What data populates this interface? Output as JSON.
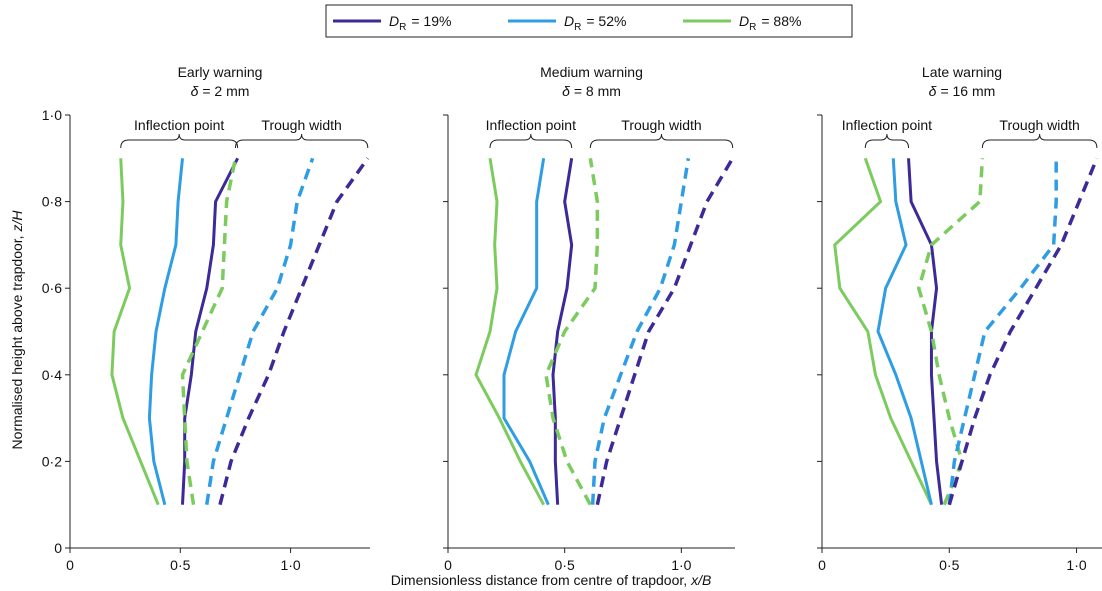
{
  "legend": [
    {
      "symbol": "D",
      "subscript": "R",
      "label": "= 19%",
      "color": "#3b2a98"
    },
    {
      "symbol": "D",
      "subscript": "R",
      "label": "= 52%",
      "color": "#2f9de4"
    },
    {
      "symbol": "D",
      "subscript": "R",
      "label": "= 88%",
      "color": "#7ccb5e"
    }
  ],
  "x_label": {
    "text": "Dimensionless distance from centre of trapdoor,",
    "var": "x/B"
  },
  "y_label": {
    "text": "Normalised height above trapdoor,",
    "var": "z/H"
  },
  "chart_data": [
    {
      "type": "line",
      "title": "Early warning",
      "subtitle": {
        "symbol": "δ",
        "text": "= 2 mm"
      },
      "annotations": [
        "Inflection point",
        "Trough width"
      ],
      "xlim": [
        0,
        1.36
      ],
      "xticks": [
        0,
        {
          "value": 0.5,
          "label": "0·5"
        },
        {
          "value": 1,
          "label": "1·0"
        }
      ],
      "ylim": [
        0,
        1
      ],
      "yticks": [
        0,
        {
          "value": 0.2,
          "label": "0·2"
        },
        {
          "value": 0.4,
          "label": "0·4"
        },
        {
          "value": 0.6,
          "label": "0·6"
        },
        {
          "value": 0.8,
          "label": "0·8"
        },
        {
          "value": 1,
          "label": "1·0"
        }
      ],
      "y": [
        0.1,
        0.2,
        0.3,
        0.4,
        0.5,
        0.6,
        0.7,
        0.8,
        0.9
      ],
      "series": [
        {
          "color": "#7ccb5e",
          "style": "solid",
          "x": [
            0.4,
            0.32,
            0.24,
            0.19,
            0.2,
            0.27,
            0.23,
            0.24,
            0.23
          ]
        },
        {
          "color": "#2f9de4",
          "style": "solid",
          "x": [
            0.43,
            0.38,
            0.36,
            0.37,
            0.39,
            0.43,
            0.48,
            0.49,
            0.51
          ]
        },
        {
          "color": "#3b2a98",
          "style": "solid",
          "x": [
            0.51,
            0.52,
            0.52,
            0.55,
            0.57,
            0.62,
            0.65,
            0.66,
            0.76
          ]
        },
        {
          "color": "#7ccb5e",
          "style": "dashed",
          "x": [
            0.56,
            0.53,
            0.52,
            0.51,
            0.6,
            0.69,
            0.7,
            0.71,
            0.75
          ]
        },
        {
          "color": "#2f9de4",
          "style": "dashed",
          "x": [
            0.62,
            0.65,
            0.71,
            0.77,
            0.83,
            0.94,
            1.0,
            1.03,
            1.1
          ]
        },
        {
          "color": "#3b2a98",
          "style": "dashed",
          "x": [
            0.68,
            0.73,
            0.81,
            0.9,
            0.97,
            1.05,
            1.13,
            1.21,
            1.35
          ]
        }
      ]
    },
    {
      "type": "line",
      "title": "Medium warning",
      "subtitle": {
        "symbol": "δ",
        "text": "= 8 mm"
      },
      "annotations": [
        "Inflection point",
        "Trough width"
      ],
      "xlim": [
        0,
        1.23
      ],
      "xticks": [
        0,
        {
          "value": 0.5,
          "label": "0·5"
        },
        {
          "value": 1,
          "label": "1·0"
        }
      ],
      "ylim": [
        0,
        1
      ],
      "y": [
        0.1,
        0.2,
        0.3,
        0.4,
        0.5,
        0.6,
        0.7,
        0.8,
        0.9
      ],
      "series": [
        {
          "color": "#7ccb5e",
          "style": "solid",
          "x": [
            0.41,
            0.31,
            0.22,
            0.12,
            0.18,
            0.21,
            0.2,
            0.21,
            0.18
          ]
        },
        {
          "color": "#2f9de4",
          "style": "solid",
          "x": [
            0.43,
            0.35,
            0.24,
            0.24,
            0.29,
            0.38,
            0.38,
            0.38,
            0.41
          ]
        },
        {
          "color": "#3b2a98",
          "style": "solid",
          "x": [
            0.47,
            0.46,
            0.46,
            0.45,
            0.47,
            0.51,
            0.53,
            0.5,
            0.53
          ]
        },
        {
          "color": "#7ccb5e",
          "style": "dashed",
          "x": [
            0.61,
            0.51,
            0.45,
            0.42,
            0.5,
            0.63,
            0.64,
            0.64,
            0.61
          ]
        },
        {
          "color": "#2f9de4",
          "style": "dashed",
          "x": [
            0.62,
            0.63,
            0.67,
            0.74,
            0.81,
            0.91,
            0.97,
            1.0,
            1.03
          ]
        },
        {
          "color": "#3b2a98",
          "style": "dashed",
          "x": [
            0.64,
            0.68,
            0.74,
            0.8,
            0.86,
            0.97,
            1.04,
            1.11,
            1.22
          ]
        }
      ]
    },
    {
      "type": "line",
      "title": "Late warning",
      "subtitle": {
        "symbol": "δ",
        "text": "= 16 mm"
      },
      "annotations": [
        "Inflection point",
        "Trough width"
      ],
      "xlim": [
        0,
        1.1
      ],
      "xticks": [
        0,
        {
          "value": 0.5,
          "label": "0·5"
        },
        {
          "value": 1,
          "label": "1·0"
        }
      ],
      "ylim": [
        0,
        1
      ],
      "y": [
        0.1,
        0.2,
        0.3,
        0.4,
        0.5,
        0.6,
        0.7,
        0.8,
        0.9
      ],
      "series": [
        {
          "color": "#7ccb5e",
          "style": "solid",
          "x": [
            0.43,
            0.35,
            0.27,
            0.21,
            0.18,
            0.07,
            0.05,
            0.23,
            0.17
          ]
        },
        {
          "color": "#2f9de4",
          "style": "solid",
          "x": [
            0.43,
            0.39,
            0.35,
            0.29,
            0.22,
            0.25,
            0.33,
            0.29,
            0.28
          ]
        },
        {
          "color": "#3b2a98",
          "style": "solid",
          "x": [
            0.47,
            0.45,
            0.44,
            0.43,
            0.43,
            0.45,
            0.43,
            0.35,
            0.34
          ]
        },
        {
          "color": "#7ccb5e",
          "style": "dashed",
          "x": [
            0.48,
            0.55,
            0.5,
            0.46,
            0.43,
            0.38,
            0.43,
            0.62,
            0.63
          ]
        },
        {
          "color": "#2f9de4",
          "style": "dashed",
          "x": [
            0.5,
            0.52,
            0.56,
            0.6,
            0.64,
            0.78,
            0.91,
            0.92,
            0.92
          ]
        },
        {
          "color": "#3b2a98",
          "style": "dashed",
          "x": [
            0.5,
            0.55,
            0.6,
            0.66,
            0.74,
            0.84,
            0.94,
            1.01,
            1.08
          ]
        }
      ]
    }
  ]
}
